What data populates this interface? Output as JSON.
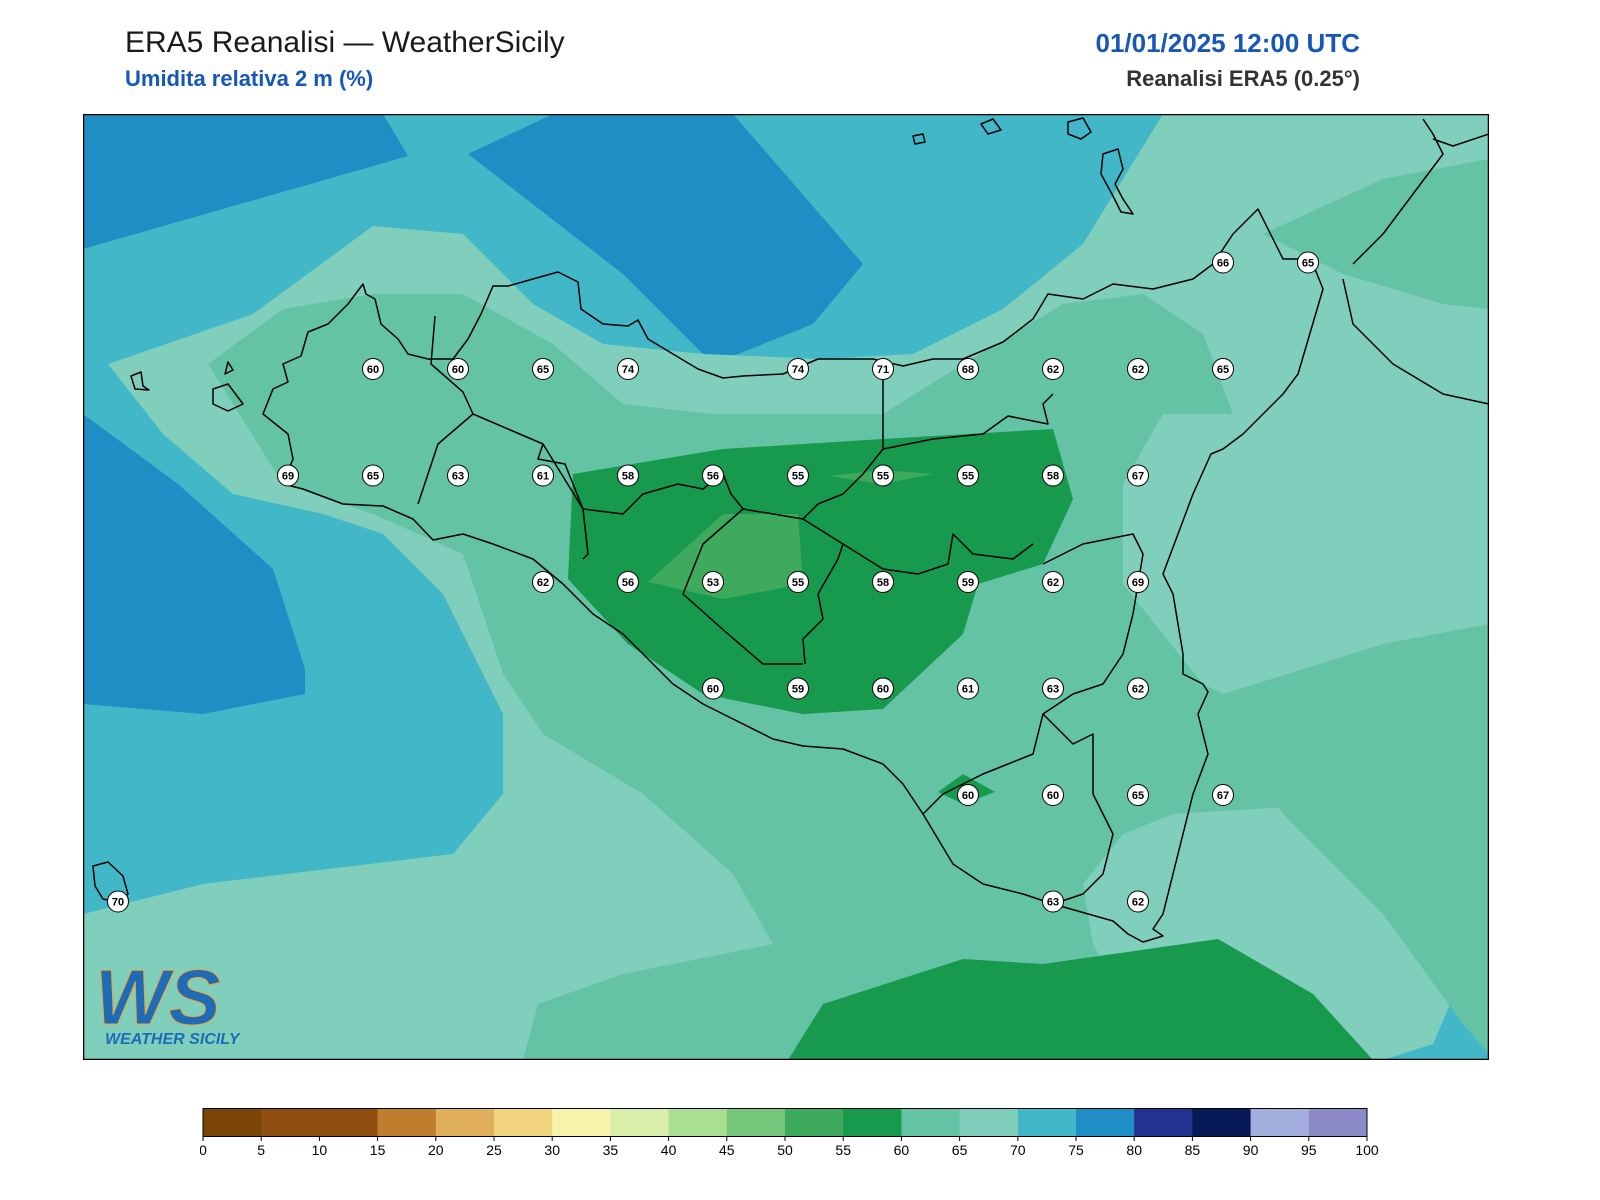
{
  "header": {
    "title": "ERA5 Reanalisi — WeatherSicily",
    "subtitle": "Umidita relativa 2 m (%)",
    "datetime": "01/01/2025 12:00 UTC",
    "source": "Reanalisi ERA5 (0.25°)"
  },
  "logo": {
    "letters": "WS",
    "text": "WEATHER SICILY"
  },
  "stations": [
    {
      "value": 60,
      "lon": 12.75,
      "lat": 38.25
    },
    {
      "value": 60,
      "lon": 13.0,
      "lat": 38.25
    },
    {
      "value": 65,
      "lon": 13.25,
      "lat": 38.25
    },
    {
      "value": 74,
      "lon": 13.5,
      "lat": 38.25
    },
    {
      "value": 74,
      "lon": 14.0,
      "lat": 38.25
    },
    {
      "value": 71,
      "lon": 14.25,
      "lat": 38.25
    },
    {
      "value": 68,
      "lon": 14.5,
      "lat": 38.25
    },
    {
      "value": 62,
      "lon": 14.75,
      "lat": 38.25
    },
    {
      "value": 62,
      "lon": 15.0,
      "lat": 38.25
    },
    {
      "value": 65,
      "lon": 15.25,
      "lat": 38.25
    },
    {
      "value": 66,
      "lon": 15.25,
      "lat": 38.5
    },
    {
      "value": 65,
      "lon": 15.5,
      "lat": 38.5
    },
    {
      "value": 69,
      "lon": 12.5,
      "lat": 38.0
    },
    {
      "value": 65,
      "lon": 12.75,
      "lat": 38.0
    },
    {
      "value": 63,
      "lon": 13.0,
      "lat": 38.0
    },
    {
      "value": 61,
      "lon": 13.25,
      "lat": 38.0
    },
    {
      "value": 58,
      "lon": 13.5,
      "lat": 38.0
    },
    {
      "value": 56,
      "lon": 13.75,
      "lat": 38.0
    },
    {
      "value": 55,
      "lon": 14.0,
      "lat": 38.0
    },
    {
      "value": 55,
      "lon": 14.25,
      "lat": 38.0
    },
    {
      "value": 55,
      "lon": 14.5,
      "lat": 38.0
    },
    {
      "value": 58,
      "lon": 14.75,
      "lat": 38.0
    },
    {
      "value": 67,
      "lon": 15.0,
      "lat": 38.0
    },
    {
      "value": 62,
      "lon": 13.25,
      "lat": 37.75
    },
    {
      "value": 56,
      "lon": 13.5,
      "lat": 37.75
    },
    {
      "value": 53,
      "lon": 13.75,
      "lat": 37.75
    },
    {
      "value": 55,
      "lon": 14.0,
      "lat": 37.75
    },
    {
      "value": 58,
      "lon": 14.25,
      "lat": 37.75
    },
    {
      "value": 59,
      "lon": 14.5,
      "lat": 37.75
    },
    {
      "value": 62,
      "lon": 14.75,
      "lat": 37.75
    },
    {
      "value": 69,
      "lon": 15.0,
      "lat": 37.75
    },
    {
      "value": 60,
      "lon": 13.75,
      "lat": 37.5
    },
    {
      "value": 59,
      "lon": 14.0,
      "lat": 37.5
    },
    {
      "value": 60,
      "lon": 14.25,
      "lat": 37.5
    },
    {
      "value": 61,
      "lon": 14.5,
      "lat": 37.5
    },
    {
      "value": 63,
      "lon": 14.75,
      "lat": 37.5
    },
    {
      "value": 62,
      "lon": 15.0,
      "lat": 37.5
    },
    {
      "value": 60,
      "lon": 14.5,
      "lat": 37.25
    },
    {
      "value": 60,
      "lon": 14.75,
      "lat": 37.25
    },
    {
      "value": 65,
      "lon": 15.0,
      "lat": 37.25
    },
    {
      "value": 67,
      "lon": 15.25,
      "lat": 37.25
    },
    {
      "value": 70,
      "lon": 12.0,
      "lat": 37.0
    },
    {
      "value": 63,
      "lon": 14.75,
      "lat": 37.0
    },
    {
      "value": 62,
      "lon": 15.0,
      "lat": 37.0
    }
  ],
  "colorbar": {
    "ticks": [
      "0",
      "5",
      "10",
      "15",
      "20",
      "25",
      "30",
      "35",
      "40",
      "45",
      "50",
      "55",
      "60",
      "65",
      "70",
      "75",
      "80",
      "85",
      "90",
      "95",
      "100"
    ],
    "colors": [
      "#7a4507",
      "#8e4f10",
      "#8e4f10",
      "#c07d2b",
      "#e0b05e",
      "#f2d57f",
      "#f6f4a8",
      "#d9efa9",
      "#aade92",
      "#76c67b",
      "#3daa5e",
      "#17994e",
      "#63c3a4",
      "#80cfbd",
      "#41b7c8",
      "#1e8ec4",
      "#23318f",
      "#071a57",
      "#a2aedc",
      "#8b89c6"
    ]
  }
}
